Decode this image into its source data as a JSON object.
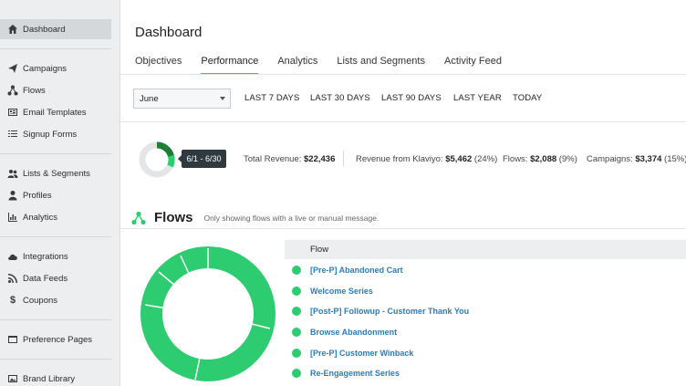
{
  "sidebar": {
    "items": [
      {
        "label": "Dashboard",
        "icon": "home-icon"
      },
      {
        "label": "Campaigns",
        "icon": "paper-plane-icon"
      },
      {
        "label": "Flows",
        "icon": "flows-icon"
      },
      {
        "label": "Email Templates",
        "icon": "email-template-icon"
      },
      {
        "label": "Signup Forms",
        "icon": "signup-form-icon"
      },
      {
        "label": "Lists & Segments",
        "icon": "users-icon"
      },
      {
        "label": "Profiles",
        "icon": "profile-icon"
      },
      {
        "label": "Analytics",
        "icon": "bar-chart-icon"
      },
      {
        "label": "Integrations",
        "icon": "cloud-icon"
      },
      {
        "label": "Data Feeds",
        "icon": "rss-icon"
      },
      {
        "label": "Coupons",
        "icon": "dollar-icon"
      },
      {
        "label": "Preference Pages",
        "icon": "window-icon"
      },
      {
        "label": "Brand Library",
        "icon": "image-icon"
      }
    ]
  },
  "header": {
    "title": "Dashboard",
    "tabs": [
      "Objectives",
      "Performance",
      "Analytics",
      "Lists and Segments",
      "Activity Feed"
    ],
    "active_tab": "Performance"
  },
  "filters": {
    "month": "June",
    "ranges": [
      "LAST 7 DAYS",
      "LAST 30 DAYS",
      "LAST 90 DAYS",
      "LAST YEAR",
      "TODAY"
    ]
  },
  "summary": {
    "period_tooltip": "6/1 - 6/30",
    "total_revenue_label": "Total Revenue:",
    "total_revenue": "$22,436",
    "klaviyo_label": "Revenue from Klaviyo:",
    "klaviyo_value": "$5,462",
    "klaviyo_pct": "(24%)",
    "flows_label": "Flows:",
    "flows_value": "$2,088",
    "flows_pct": "(9%)",
    "campaigns_label": "Campaigns:",
    "campaigns_value": "$3,374",
    "campaigns_pct": "(15%)"
  },
  "flows": {
    "title": "Flows",
    "note": "Only showing flows with a live or manual message.",
    "column_header": "Flow",
    "rows": [
      "[Pre-P] Abandoned Cart",
      "Welcome Series",
      "[Post-P] Followup - Customer Thank You",
      "Browse Abandonment",
      "[Pre-P] Customer Winback",
      "Re-Engagement Series"
    ]
  },
  "colors": {
    "accent": "#2ecc71",
    "link": "#2a7dbf",
    "dark_green": "#1e7e34",
    "tooltip_bg": "#2f3a40"
  }
}
